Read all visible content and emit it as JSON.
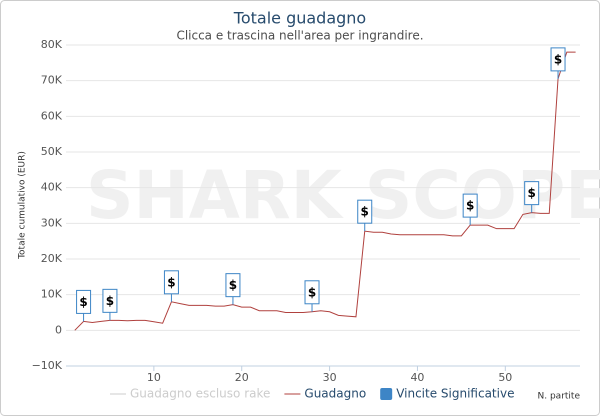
{
  "chart_data": {
    "type": "line",
    "title": "Totale guadagno",
    "subtitle": "Clicca e trascina nell'area per ingrandire.",
    "watermark": "SHARK SCOPE",
    "y_label": "Totale cumulativo (EUR)",
    "x_label": "N. partite",
    "x": [
      1,
      2,
      3,
      4,
      5,
      6,
      7,
      8,
      9,
      10,
      11,
      12,
      13,
      14,
      15,
      16,
      17,
      18,
      19,
      20,
      21,
      22,
      23,
      24,
      25,
      26,
      27,
      28,
      29,
      30,
      31,
      32,
      33,
      34,
      35,
      36,
      37,
      38,
      39,
      40,
      41,
      42,
      43,
      44,
      45,
      46,
      47,
      48,
      49,
      50,
      51,
      52,
      53,
      54,
      55,
      56,
      57,
      58
    ],
    "series": [
      {
        "name": "Guadagno escluso rake",
        "color": "#cccccc",
        "visible": false
      },
      {
        "name": "Guadagno",
        "color": "#b0413e",
        "values": [
          0,
          2500,
          2200,
          2500,
          2800,
          2800,
          2700,
          2800,
          2800,
          2400,
          2000,
          8000,
          7500,
          7000,
          7000,
          7000,
          6800,
          6800,
          7200,
          6500,
          6500,
          5500,
          5500,
          5500,
          5000,
          5000,
          5000,
          5200,
          5500,
          5200,
          4200,
          4000,
          3800,
          27800,
          27500,
          27500,
          27000,
          26800,
          26800,
          26800,
          26800,
          26800,
          26800,
          26500,
          26500,
          29500,
          29500,
          29500,
          28500,
          28500,
          28500,
          32500,
          33000,
          32800,
          32800,
          70500,
          78000,
          78000
        ]
      }
    ],
    "flags": {
      "name": "Vincite Significative",
      "color": "#3d85c6",
      "label": "$",
      "x": [
        2,
        5,
        12,
        19,
        28,
        34,
        46,
        53,
        56
      ]
    },
    "xlim": [
      0,
      58.5
    ],
    "xticks": [
      10,
      20,
      30,
      40,
      50
    ],
    "ylim": [
      -10000,
      80000
    ],
    "yticks": [
      {
        "value": -10000,
        "label": "−10K"
      },
      0,
      {
        "value": 10000,
        "label": "10K"
      },
      {
        "value": 20000,
        "label": "20K"
      },
      {
        "value": 30000,
        "label": "30K"
      },
      {
        "value": 40000,
        "label": "40K"
      },
      {
        "value": 50000,
        "label": "50K"
      },
      {
        "value": 60000,
        "label": "60K"
      },
      {
        "value": 70000,
        "label": "70K"
      },
      {
        "value": 80000,
        "label": "80K"
      }
    ],
    "grid": true
  }
}
